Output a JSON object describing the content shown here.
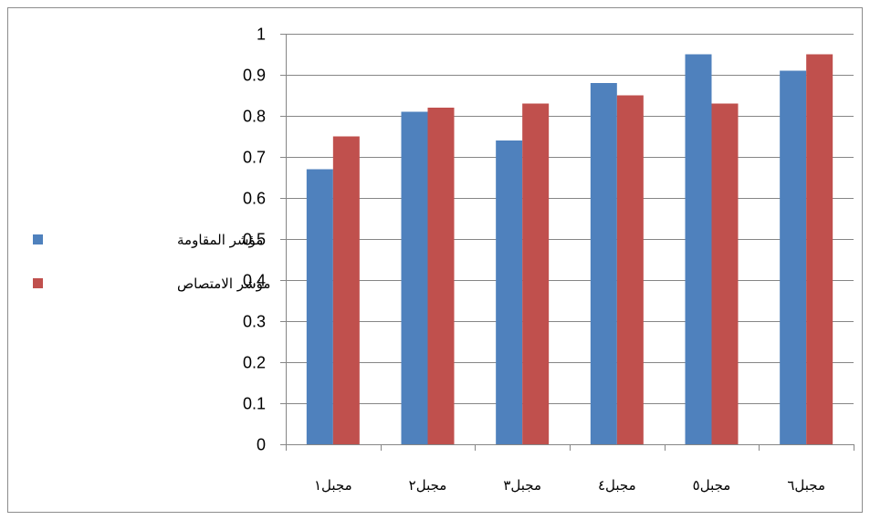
{
  "chart_data": {
    "type": "bar",
    "categories": [
      "مجبل١",
      "مجبل٢",
      "مجبل٣",
      "مجبل٤",
      "مجبل٥",
      "مجبل٦"
    ],
    "series": [
      {
        "name": "مؤشر المقاومة",
        "color": "#4f81bd",
        "values": [
          0.67,
          0.81,
          0.74,
          0.88,
          0.95,
          0.91
        ]
      },
      {
        "name": "مؤشر الامتصاص",
        "color": "#c0504d",
        "values": [
          0.75,
          0.82,
          0.83,
          0.85,
          0.83,
          0.95
        ]
      }
    ],
    "y_ticks": [
      "0",
      "0.1",
      "0.2",
      "0.3",
      "0.4",
      "0.5",
      "0.6",
      "0.7",
      "0.8",
      "0.9",
      "1"
    ],
    "ylim": [
      0,
      1
    ],
    "grid": true,
    "legend_position": "left",
    "title": "",
    "xlabel": "",
    "ylabel": ""
  }
}
